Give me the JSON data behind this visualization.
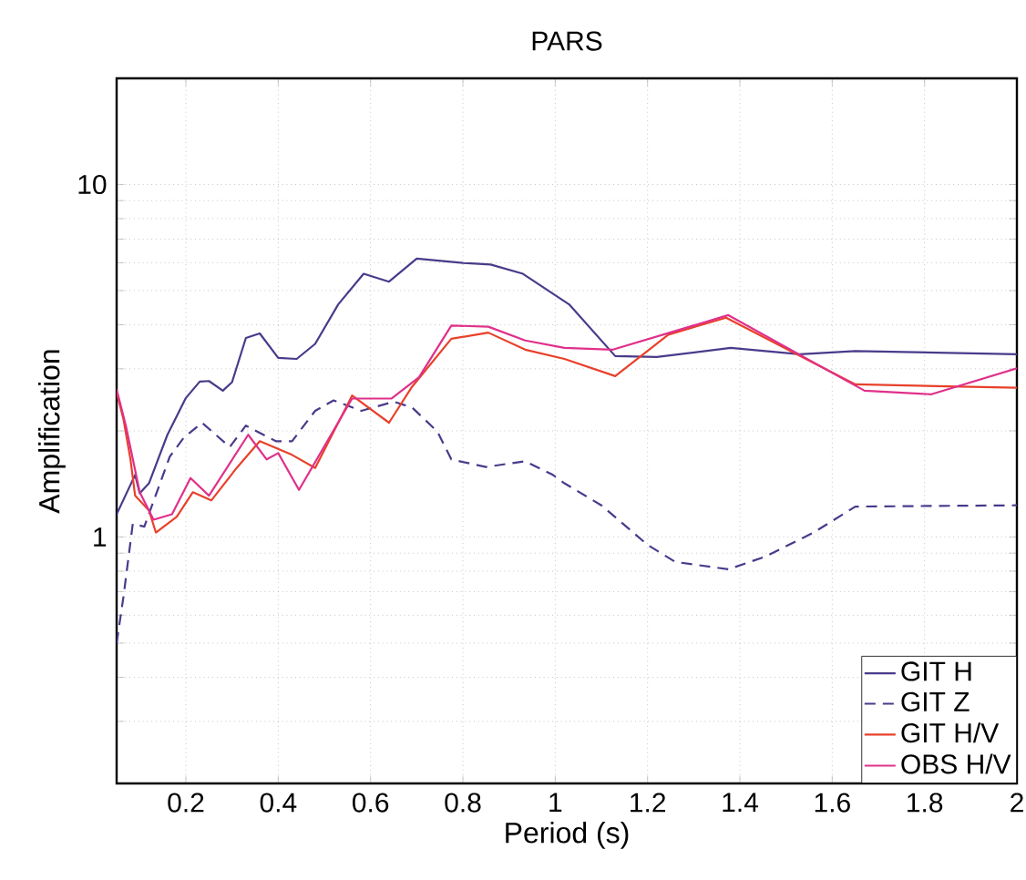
{
  "chart_data": {
    "type": "line",
    "title": "PARS",
    "xlabel": "Period (s)",
    "ylabel": "Amplification",
    "log": "y",
    "grid": true,
    "legend": "bottom right",
    "xlim": [
      0.05,
      2
    ],
    "ylim": [
      0.2,
      20
    ],
    "xticks": [
      0.2,
      0.4,
      0.6,
      0.8,
      1,
      1.2,
      1.4,
      1.6,
      1.8,
      2
    ],
    "yticks": [
      {
        "value": 0.2,
        "label": null
      },
      {
        "value": 0.3,
        "label": null
      },
      {
        "value": 0.4,
        "label": null
      },
      {
        "value": 0.5,
        "label": null
      },
      {
        "value": 0.6,
        "label": null
      },
      {
        "value": 0.7,
        "label": null
      },
      {
        "value": 0.8,
        "label": null
      },
      {
        "value": 0.9,
        "label": null
      },
      1,
      {
        "value": 2,
        "label": null
      },
      {
        "value": 3,
        "label": null
      },
      {
        "value": 4,
        "label": null
      },
      {
        "value": 5,
        "label": null
      },
      {
        "value": 6,
        "label": null
      },
      {
        "value": 7,
        "label": null
      },
      {
        "value": 8,
        "label": null
      },
      {
        "value": 9,
        "label": null
      },
      10,
      {
        "value": 20,
        "label": null
      }
    ],
    "series": [
      {
        "name": "GIT H",
        "color": "#4a3a8a",
        "line_style": "solid",
        "x": [
          0.05,
          0.09,
          0.1,
          0.12,
          0.16,
          0.2,
          0.23,
          0.25,
          0.28,
          0.3,
          0.33,
          0.36,
          0.4,
          0.44,
          0.48,
          0.53,
          0.585,
          0.64,
          0.7,
          0.8,
          0.86,
          0.93,
          1.03,
          1.13,
          1.22,
          1.38,
          1.53,
          1.65,
          2.0
        ],
        "values": [
          1.16,
          1.5,
          1.33,
          1.42,
          1.95,
          2.48,
          2.76,
          2.77,
          2.6,
          2.75,
          3.67,
          3.78,
          3.22,
          3.2,
          3.53,
          4.57,
          5.58,
          5.3,
          6.16,
          5.99,
          5.93,
          5.58,
          4.57,
          3.26,
          3.24,
          3.44,
          3.3,
          3.37,
          3.3
        ]
      },
      {
        "name": "GIT Z",
        "color": "#4a3a8a",
        "line_style": "dashed",
        "x": [
          0.05,
          0.065,
          0.085,
          0.11,
          0.165,
          0.195,
          0.235,
          0.295,
          0.33,
          0.395,
          0.43,
          0.48,
          0.52,
          0.58,
          0.65,
          0.69,
          0.745,
          0.775,
          0.85,
          0.935,
          0.995,
          1.02,
          1.1,
          1.2,
          1.26,
          1.375,
          1.455,
          1.56,
          1.65,
          2.0
        ],
        "values": [
          0.5,
          0.68,
          1.09,
          1.07,
          1.69,
          1.91,
          2.11,
          1.8,
          2.07,
          1.87,
          1.87,
          2.28,
          2.44,
          2.28,
          2.42,
          2.33,
          1.99,
          1.66,
          1.58,
          1.64,
          1.5,
          1.42,
          1.23,
          0.95,
          0.85,
          0.81,
          0.88,
          1.03,
          1.22,
          1.23
        ]
      },
      {
        "name": "GIT H/V",
        "color": "#e8402a",
        "line_style": "solid",
        "x": [
          0.05,
          0.065,
          0.08,
          0.09,
          0.12,
          0.135,
          0.18,
          0.215,
          0.255,
          0.31,
          0.36,
          0.43,
          0.48,
          0.56,
          0.64,
          0.69,
          0.775,
          0.855,
          0.935,
          1.02,
          1.13,
          1.245,
          1.37,
          1.65,
          2.0
        ],
        "values": [
          2.57,
          2.15,
          1.66,
          1.31,
          1.19,
          1.03,
          1.14,
          1.34,
          1.27,
          1.57,
          1.87,
          1.71,
          1.57,
          2.52,
          2.11,
          2.67,
          3.65,
          3.8,
          3.4,
          3.2,
          2.86,
          3.75,
          4.19,
          2.71,
          2.65
        ]
      },
      {
        "name": "OBS H/V",
        "color": "#e0308a",
        "line_style": "solid",
        "x": [
          0.05,
          0.07,
          0.1,
          0.13,
          0.17,
          0.21,
          0.25,
          0.335,
          0.375,
          0.4,
          0.445,
          0.56,
          0.645,
          0.705,
          0.775,
          0.855,
          0.935,
          1.02,
          1.125,
          1.375,
          1.67,
          1.815,
          2.0
        ],
        "values": [
          2.62,
          2.07,
          1.34,
          1.12,
          1.16,
          1.47,
          1.31,
          1.95,
          1.66,
          1.73,
          1.36,
          2.47,
          2.47,
          2.84,
          3.98,
          3.95,
          3.61,
          3.44,
          3.4,
          4.26,
          2.6,
          2.54,
          3.01
        ]
      }
    ]
  }
}
